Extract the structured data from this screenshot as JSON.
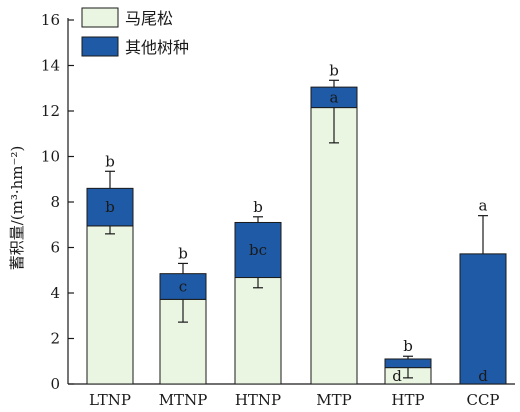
{
  "chart_data": {
    "type": "bar",
    "stacked": true,
    "categories": [
      "LTNP",
      "MTNP",
      "HTNP",
      "MTP",
      "HTP",
      "CCP"
    ],
    "ylabel": "蓄积量/(m³·hm⁻²)",
    "ylim": [
      0,
      16
    ],
    "yticks": [
      0,
      2,
      4,
      6,
      8,
      10,
      12,
      14,
      16
    ],
    "series": [
      {
        "name": "马尾松",
        "color": "#eaf5e2",
        "values": [
          6.95,
          3.72,
          4.68,
          12.15,
          0.72,
          0
        ],
        "error_low": [
          0.35,
          1.0,
          0.45,
          1.55,
          0.45,
          0
        ],
        "labels": [
          "",
          "",
          "",
          "",
          "d",
          "d"
        ]
      },
      {
        "name": "其他树种",
        "color": "#1f5aa6",
        "values": [
          1.65,
          1.13,
          2.42,
          0.9,
          0.38,
          5.72
        ],
        "labels": [
          "b",
          "c",
          "bc",
          "a",
          "",
          ""
        ]
      }
    ],
    "totals": [
      8.6,
      4.85,
      7.1,
      13.05,
      1.1,
      5.72
    ],
    "error_high": [
      0.75,
      0.45,
      0.25,
      0.3,
      0.12,
      1.68
    ],
    "top_labels": [
      "b",
      "b",
      "b",
      "b",
      "b",
      "a"
    ],
    "legend": "top-left",
    "grid": false
  }
}
